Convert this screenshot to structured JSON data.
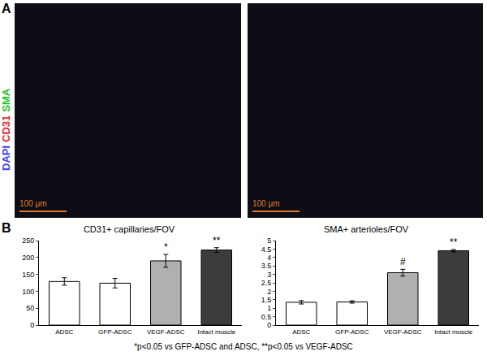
{
  "panel_a": {
    "label": "A",
    "stains": [
      {
        "text": "DAPI",
        "color": "#4040ff"
      },
      {
        "text": "CD31",
        "color": "#e8262b"
      },
      {
        "text": "SMA",
        "color": "#22c422"
      }
    ],
    "scale_bars": [
      "100 µm",
      "100 µm"
    ]
  },
  "panel_b": {
    "label": "B",
    "footnote": "*p<0.05 vs GFP-ADSC and ADSC, **p<0.05 vs VEGF-ADSC"
  },
  "chart_data": [
    {
      "type": "bar",
      "title": "CD31+ capillaries/FOV",
      "categories": [
        "ADSC",
        "GFP-ADSC",
        "VEGF-ADSC",
        "Intact muscle"
      ],
      "values": [
        129,
        124,
        190,
        222
      ],
      "errors": [
        11,
        14,
        19,
        7
      ],
      "colors": [
        "#ffffff",
        "#ffffff",
        "#b0b0b0",
        "#3c3c3c"
      ],
      "ylim": [
        0,
        250
      ],
      "yticks": [
        0,
        50,
        100,
        150,
        200,
        250
      ],
      "grid": false,
      "annotations": [
        {
          "category": "VEGF-ADSC",
          "text": "*"
        },
        {
          "category": "Intact muscle",
          "text": "**"
        }
      ]
    },
    {
      "type": "bar",
      "title": "SMA+ arterioles/FOV",
      "categories": [
        "ADSC",
        "GFP-ADSC",
        "VEGF-ADSC",
        "Intact muscle"
      ],
      "values": [
        1.35,
        1.37,
        3.1,
        4.4
      ],
      "errors": [
        0.1,
        0.07,
        0.2,
        0.07
      ],
      "colors": [
        "#ffffff",
        "#ffffff",
        "#b0b0b0",
        "#3c3c3c"
      ],
      "ylim": [
        0,
        5
      ],
      "yticks": [
        0,
        0.5,
        1,
        1.5,
        2,
        2.5,
        3,
        3.5,
        4,
        4.5,
        5
      ],
      "grid": false,
      "annotations": [
        {
          "category": "VEGF-ADSC",
          "text": "#"
        },
        {
          "category": "Intact muscle",
          "text": "**"
        }
      ]
    }
  ]
}
